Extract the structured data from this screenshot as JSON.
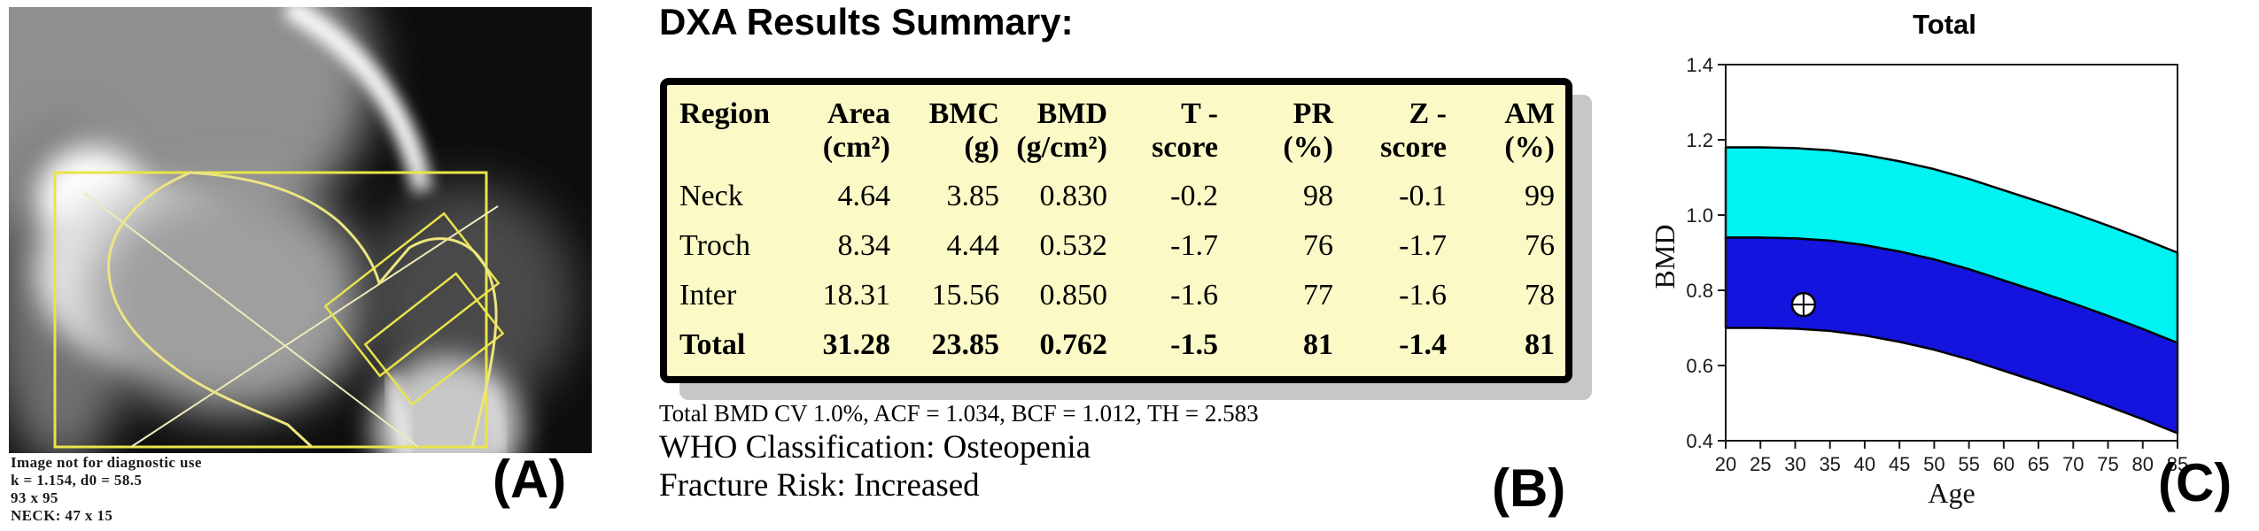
{
  "panel_a": {
    "label": "(A)",
    "overlay_lines": [
      "Image not for diagnostic use",
      "k = 1.154, d0 = 58.5",
      "93 x 95",
      "NECK: 47 x 15"
    ]
  },
  "panel_b": {
    "label": "(B)",
    "title": "DXA Results Summary:",
    "bg_color": "#FBF9C6",
    "table": {
      "headers": [
        {
          "l1": "Region",
          "l2": ""
        },
        {
          "l1": "Area",
          "l2": "(cm²)"
        },
        {
          "l1": "BMC",
          "l2": "(g)"
        },
        {
          "l1": "BMD",
          "l2": "(g/cm²)"
        },
        {
          "l1": "T -",
          "l2": "score"
        },
        {
          "l1": "PR",
          "l2": "(%)"
        },
        {
          "l1": "Z -",
          "l2": "score"
        },
        {
          "l1": "AM",
          "l2": "(%)"
        }
      ],
      "rows": [
        {
          "cells": [
            "Neck",
            "4.64",
            "3.85",
            "0.830",
            "-0.2",
            "98",
            "-0.1",
            "99"
          ],
          "bold": false
        },
        {
          "cells": [
            "Troch",
            "8.34",
            "4.44",
            "0.532",
            "-1.7",
            "76",
            "-1.7",
            "76"
          ],
          "bold": false
        },
        {
          "cells": [
            "Inter",
            "18.31",
            "15.56",
            "0.850",
            "-1.6",
            "77",
            "-1.6",
            "78"
          ],
          "bold": false
        },
        {
          "cells": [
            "Total",
            "31.28",
            "23.85",
            "0.762",
            "-1.5",
            "81",
            "-1.4",
            "81"
          ],
          "bold": true
        }
      ]
    },
    "footnote": "Total BMD CV 1.0%, ACF = 1.034, BCF = 1.012, TH = 2.583",
    "who_classification": "WHO Classification: Osteopenia",
    "fracture_risk": "Fracture Risk: Increased"
  },
  "panel_c": {
    "label": "(C)"
  },
  "chart_data": {
    "type": "area",
    "title": "Total",
    "xlabel": "Age",
    "ylabel": "BMD",
    "xlim": [
      20,
      85
    ],
    "ylim": [
      0.4,
      1.4
    ],
    "x_ticks": [
      20,
      25,
      30,
      35,
      40,
      45,
      50,
      55,
      60,
      65,
      70,
      75,
      80,
      85
    ],
    "y_ticks": [
      0.4,
      0.6,
      0.8,
      1.0,
      1.2,
      1.4
    ],
    "ages": [
      20,
      25,
      30,
      35,
      40,
      45,
      50,
      55,
      60,
      65,
      70,
      75,
      80,
      85
    ],
    "bands": [
      {
        "name": "normal-range",
        "color": "#00F2F2",
        "y_top": [
          1.18,
          1.18,
          1.178,
          1.172,
          1.16,
          1.143,
          1.122,
          1.096,
          1.066,
          1.036,
          1.005,
          0.972,
          0.937,
          0.9
        ],
        "y_bottom": [
          0.94,
          0.94,
          0.938,
          0.932,
          0.92,
          0.903,
          0.882,
          0.856,
          0.826,
          0.796,
          0.765,
          0.732,
          0.697,
          0.66
        ]
      },
      {
        "name": "low-range",
        "color": "#1414DE",
        "y_top": [
          0.94,
          0.94,
          0.938,
          0.932,
          0.92,
          0.903,
          0.882,
          0.856,
          0.826,
          0.796,
          0.765,
          0.732,
          0.697,
          0.66
        ],
        "y_bottom": [
          0.7,
          0.7,
          0.698,
          0.692,
          0.68,
          0.663,
          0.642,
          0.616,
          0.586,
          0.556,
          0.525,
          0.492,
          0.457,
          0.42
        ]
      }
    ],
    "patient_point": {
      "age": 31.2,
      "bmd": 0.762,
      "marker": "circle-crosshair"
    },
    "legend": "none",
    "grid": false
  }
}
